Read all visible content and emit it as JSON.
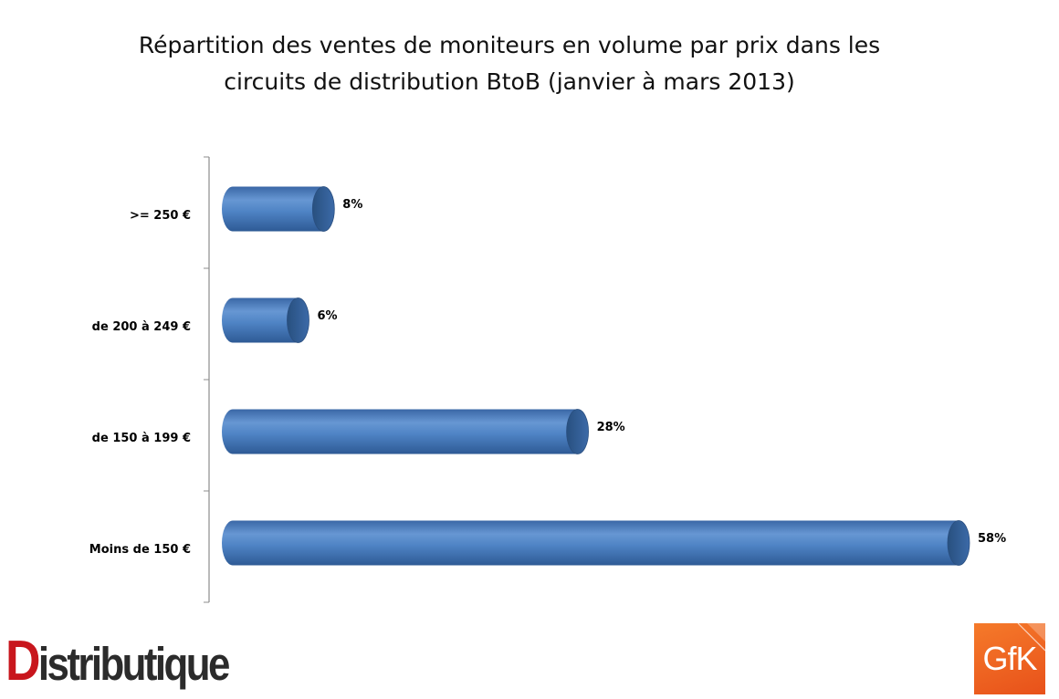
{
  "chart_data": {
    "type": "bar",
    "orientation": "horizontal",
    "style": "3d-cylinder",
    "title": "Répartition des ventes de moniteurs en volume par prix dans les circuits de distribution BtoB (janvier à mars 2013)",
    "title_lines": [
      "Répartition des ventes de moniteurs en volume par prix dans les",
      "circuits de distribution BtoB (janvier à mars 2013)"
    ],
    "categories": [
      ">= 250 €",
      "de 200 à 249 €",
      "de 150 à 199 €",
      "Moins de 150 €"
    ],
    "values": [
      8,
      6,
      28,
      58
    ],
    "value_labels": [
      "8%",
      "6%",
      "28%",
      "58%"
    ],
    "unit": "%",
    "xlim": [
      0,
      58
    ],
    "grid": false,
    "legend": "none",
    "bar_color": "#4a7ebb"
  },
  "logos": {
    "left": "Distributique",
    "right": "GfK"
  }
}
